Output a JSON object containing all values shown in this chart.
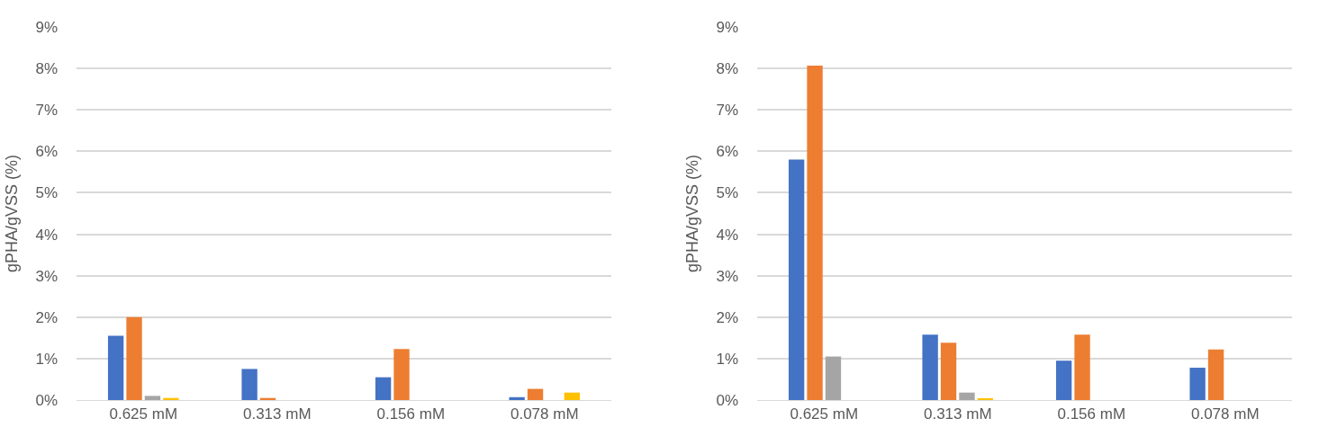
{
  "chart_data": [
    {
      "type": "bar",
      "ylabel": "gPHA/gVSS (%)",
      "categories": [
        "0.625 mM",
        "0.313 mM",
        "0.156 mM",
        "0.078 mM"
      ],
      "series": [
        {
          "color": "#4472c4",
          "values": [
            1.55,
            0.75,
            0.55,
            0.07
          ]
        },
        {
          "color": "#ed7d31",
          "values": [
            2.0,
            0.05,
            1.23,
            0.27
          ]
        },
        {
          "color": "#a5a5a5",
          "values": [
            0.1,
            0,
            0,
            0
          ]
        },
        {
          "color": "#ffc000",
          "values": [
            0.05,
            0,
            0,
            0.18
          ]
        }
      ],
      "ylim": [
        0,
        9
      ],
      "yticks": [
        {
          "value": 0,
          "label": "0%"
        },
        {
          "value": 1,
          "label": "1%"
        },
        {
          "value": 2,
          "label": "2%"
        },
        {
          "value": 3,
          "label": "3%"
        },
        {
          "value": 4,
          "label": "4%"
        },
        {
          "value": 5,
          "label": "5%"
        },
        {
          "value": 6,
          "label": "6%"
        },
        {
          "value": 7,
          "label": "7%"
        },
        {
          "value": 8,
          "label": "8%"
        },
        {
          "value": 9,
          "label": "9%"
        }
      ],
      "grid": "y"
    },
    {
      "type": "bar",
      "ylabel": "gPHA/gVSS (%)",
      "categories": [
        "0.625 mM",
        "0.313 mM",
        "0.156 mM",
        "0.078 mM"
      ],
      "series": [
        {
          "color": "#4472c4",
          "values": [
            5.8,
            1.58,
            0.95,
            0.78
          ]
        },
        {
          "color": "#ed7d31",
          "values": [
            8.07,
            1.38,
            1.58,
            1.22
          ]
        },
        {
          "color": "#a5a5a5",
          "values": [
            1.05,
            0.18,
            0,
            0
          ]
        },
        {
          "color": "#ffc000",
          "values": [
            0,
            0.04,
            0,
            0
          ]
        }
      ],
      "ylim": [
        0,
        9
      ],
      "yticks": [
        {
          "value": 0,
          "label": "0%"
        },
        {
          "value": 1,
          "label": "1%"
        },
        {
          "value": 2,
          "label": "2%"
        },
        {
          "value": 3,
          "label": "3%"
        },
        {
          "value": 4,
          "label": "4%"
        },
        {
          "value": 5,
          "label": "5%"
        },
        {
          "value": 6,
          "label": "6%"
        },
        {
          "value": 7,
          "label": "7%"
        },
        {
          "value": 8,
          "label": "8%"
        },
        {
          "value": 9,
          "label": "9%"
        }
      ],
      "grid": "y"
    }
  ]
}
